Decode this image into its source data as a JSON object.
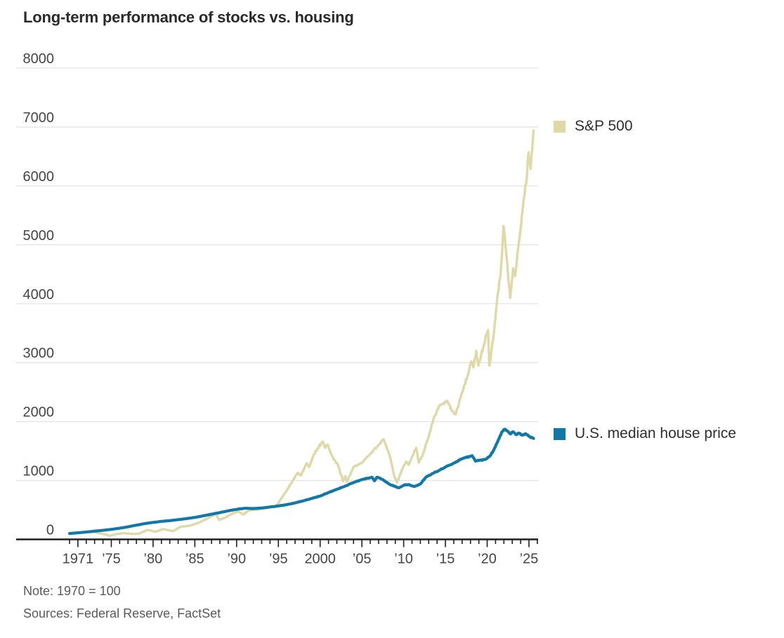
{
  "title": "Long-term performance of stocks vs. housing",
  "note": "Note: 1970 = 100",
  "sources": "Sources: Federal Reserve, FactSet",
  "colors": {
    "sp500": "#ded9a6",
    "house": "#1278a8",
    "grid": "#e4e4e4",
    "axis": "#1f1f1f",
    "tick_label": "#454545"
  },
  "chart_data": {
    "type": "line",
    "title": "Long-term performance of stocks vs. housing",
    "xlabel": "",
    "ylabel": "",
    "x_range": [
      1970,
      2026
    ],
    "ylim": [
      0,
      8000
    ],
    "grid": "horizontal",
    "legend_position": "right-of-line-ends",
    "y_ticks": [
      0,
      1000,
      2000,
      3000,
      4000,
      5000,
      6000,
      7000,
      8000
    ],
    "x_major_ticks": [
      {
        "year": 1971,
        "label": "1971"
      },
      {
        "year": 1975,
        "label": "’75"
      },
      {
        "year": 1980,
        "label": "’80"
      },
      {
        "year": 1985,
        "label": "’85"
      },
      {
        "year": 1990,
        "label": "’90"
      },
      {
        "year": 1995,
        "label": "’95"
      },
      {
        "year": 2000,
        "label": "2000"
      },
      {
        "year": 2005,
        "label": "’05"
      },
      {
        "year": 2010,
        "label": "’10"
      },
      {
        "year": 2015,
        "label": "’15"
      },
      {
        "year": 2020,
        "label": "’20"
      },
      {
        "year": 2025,
        "label": "’25"
      }
    ],
    "series": [
      {
        "name": "S&P 500",
        "color": "#ded9a6",
        "points": [
          [
            1970,
            100
          ],
          [
            1971,
            107
          ],
          [
            1971.8,
            122
          ],
          [
            1972.9,
            128
          ],
          [
            1973.4,
            110
          ],
          [
            1974.2,
            85
          ],
          [
            1974.8,
            62
          ],
          [
            1975.5,
            88
          ],
          [
            1976.5,
            105
          ],
          [
            1977.5,
            93
          ],
          [
            1978.3,
            95
          ],
          [
            1979.3,
            160
          ],
          [
            1980.3,
            130
          ],
          [
            1981.2,
            175
          ],
          [
            1982.4,
            140
          ],
          [
            1983.3,
            215
          ],
          [
            1984.5,
            235
          ],
          [
            1985.5,
            285
          ],
          [
            1986.5,
            355
          ],
          [
            1987.5,
            430
          ],
          [
            1987.9,
            330
          ],
          [
            1988.6,
            365
          ],
          [
            1989.5,
            440
          ],
          [
            1990.2,
            477
          ],
          [
            1990.8,
            420
          ],
          [
            1991.5,
            495
          ],
          [
            1992.5,
            505
          ],
          [
            1993.5,
            535
          ],
          [
            1994.3,
            555
          ],
          [
            1994.9,
            595
          ],
          [
            1995.9,
            810
          ],
          [
            1996.7,
            990
          ],
          [
            1997.3,
            1130
          ],
          [
            1997.7,
            1085
          ],
          [
            1998.4,
            1290
          ],
          [
            1998.7,
            1230
          ],
          [
            1999.2,
            1430
          ],
          [
            1999.7,
            1540
          ],
          [
            2000.3,
            1660
          ],
          [
            2000.6,
            1555
          ],
          [
            2000.9,
            1610
          ],
          [
            2001.6,
            1360
          ],
          [
            2002.1,
            1280
          ],
          [
            2002.75,
            990
          ],
          [
            2003.0,
            1075
          ],
          [
            2003.2,
            975
          ],
          [
            2004.0,
            1230
          ],
          [
            2005.0,
            1300
          ],
          [
            2006.0,
            1450
          ],
          [
            2007.0,
            1600
          ],
          [
            2007.6,
            1700
          ],
          [
            2008.3,
            1440
          ],
          [
            2008.9,
            1060
          ],
          [
            2009.2,
            965
          ],
          [
            2009.9,
            1215
          ],
          [
            2010.3,
            1320
          ],
          [
            2010.6,
            1265
          ],
          [
            2011.1,
            1430
          ],
          [
            2011.5,
            1555
          ],
          [
            2011.8,
            1305
          ],
          [
            2012.3,
            1440
          ],
          [
            2013.0,
            1750
          ],
          [
            2013.6,
            2060
          ],
          [
            2014.3,
            2280
          ],
          [
            2015.2,
            2350
          ],
          [
            2015.8,
            2180
          ],
          [
            2016.2,
            2120
          ],
          [
            2016.9,
            2450
          ],
          [
            2017.7,
            2800
          ],
          [
            2018.1,
            3020
          ],
          [
            2018.35,
            2920
          ],
          [
            2018.7,
            3200
          ],
          [
            2018.95,
            2950
          ],
          [
            2019.6,
            3300
          ],
          [
            2020.1,
            3550
          ],
          [
            2020.27,
            2950
          ],
          [
            2020.8,
            3500
          ],
          [
            2021.2,
            4100
          ],
          [
            2021.6,
            4500
          ],
          [
            2021.95,
            5320
          ],
          [
            2022.3,
            4830
          ],
          [
            2022.75,
            4100
          ],
          [
            2023.1,
            4600
          ],
          [
            2023.35,
            4470
          ],
          [
            2023.9,
            5150
          ],
          [
            2024.4,
            5800
          ],
          [
            2024.75,
            6150
          ],
          [
            2024.95,
            6570
          ],
          [
            2025.2,
            6290
          ],
          [
            2025.55,
            6940
          ]
        ]
      },
      {
        "name": "U.S. median house price",
        "color": "#1278a8",
        "points": [
          [
            1970,
            100
          ],
          [
            1971,
            112
          ],
          [
            1972,
            125
          ],
          [
            1973,
            140
          ],
          [
            1974,
            154
          ],
          [
            1975,
            170
          ],
          [
            1976,
            190
          ],
          [
            1977,
            214
          ],
          [
            1978,
            242
          ],
          [
            1979,
            268
          ],
          [
            1980,
            288
          ],
          [
            1981,
            306
          ],
          [
            1982,
            318
          ],
          [
            1983,
            335
          ],
          [
            1984,
            353
          ],
          [
            1985,
            373
          ],
          [
            1986,
            400
          ],
          [
            1987,
            428
          ],
          [
            1988,
            455
          ],
          [
            1989,
            485
          ],
          [
            1990.2,
            515
          ],
          [
            1991,
            528
          ],
          [
            1992,
            524
          ],
          [
            1993,
            532
          ],
          [
            1994,
            550
          ],
          [
            1995,
            568
          ],
          [
            1996,
            590
          ],
          [
            1997,
            620
          ],
          [
            1998,
            655
          ],
          [
            1999,
            695
          ],
          [
            2000,
            735
          ],
          [
            2001,
            795
          ],
          [
            2002,
            850
          ],
          [
            2003,
            905
          ],
          [
            2004,
            965
          ],
          [
            2005,
            1015
          ],
          [
            2006.2,
            1055
          ],
          [
            2006.5,
            995
          ],
          [
            2006.8,
            1055
          ],
          [
            2007.5,
            1015
          ],
          [
            2008.3,
            935
          ],
          [
            2009.4,
            875
          ],
          [
            2010.1,
            925
          ],
          [
            2010.6,
            930
          ],
          [
            2011.3,
            898
          ],
          [
            2012.0,
            940
          ],
          [
            2012.7,
            1060
          ],
          [
            2013.5,
            1120
          ],
          [
            2014.3,
            1175
          ],
          [
            2015.2,
            1245
          ],
          [
            2016.1,
            1300
          ],
          [
            2017.0,
            1370
          ],
          [
            2018.2,
            1420
          ],
          [
            2018.6,
            1330
          ],
          [
            2019.1,
            1345
          ],
          [
            2019.7,
            1355
          ],
          [
            2020.3,
            1410
          ],
          [
            2020.8,
            1520
          ],
          [
            2021.3,
            1680
          ],
          [
            2021.8,
            1830
          ],
          [
            2022.1,
            1870
          ],
          [
            2022.5,
            1835
          ],
          [
            2022.8,
            1790
          ],
          [
            2023.1,
            1828
          ],
          [
            2023.45,
            1778
          ],
          [
            2023.8,
            1805
          ],
          [
            2024.2,
            1768
          ],
          [
            2024.6,
            1795
          ],
          [
            2025.0,
            1752
          ],
          [
            2025.55,
            1712
          ]
        ]
      }
    ]
  }
}
